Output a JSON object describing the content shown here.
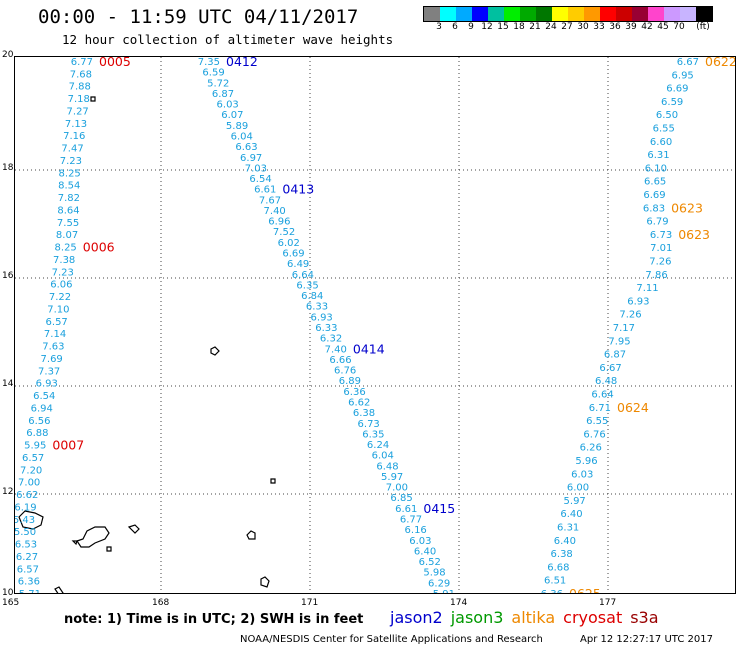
{
  "header": {
    "title": "00:00 - 11:59 UTC 04/11/2017",
    "subtitle": "12 hour collection of altimeter wave heights"
  },
  "colorbar": {
    "colors": [
      "#808080",
      "#00ffff",
      "#00aaff",
      "#0000ff",
      "#00c0a0",
      "#00ee00",
      "#00aa00",
      "#007700",
      "#ffff00",
      "#ffcc00",
      "#ff9900",
      "#ff0000",
      "#cc0000",
      "#990033",
      "#ff44cc",
      "#cc99ff",
      "#c8b4ff",
      "#000000"
    ],
    "labels": [
      "3",
      "6",
      "9",
      "12",
      "15",
      "18",
      "21",
      "24",
      "27",
      "30",
      "33",
      "36",
      "39",
      "42",
      "45",
      "70",
      "(ft)"
    ]
  },
  "axes": {
    "lat_labels": [
      "20",
      "18",
      "16",
      "14",
      "12",
      "10"
    ],
    "lon_labels": [
      "165",
      "168",
      "171",
      "174",
      "177"
    ]
  },
  "tracks": [
    {
      "id": "track-1",
      "values": [
        "6.77",
        "7.68",
        "7.88",
        "7.18",
        "7.27",
        "7.13",
        "7.16",
        "7.47",
        "7.23",
        "8.25",
        "8.54",
        "7.82",
        "8.64",
        "7.55",
        "8.07",
        "8.25",
        "7.38",
        "7.23",
        "6.06",
        "7.22",
        "7.10",
        "6.57",
        "7.14",
        "7.63",
        "7.69",
        "7.37",
        "6.93",
        "6.54",
        "6.94",
        "6.56",
        "6.88",
        "5.95",
        "6.57",
        "7.20",
        "7.00",
        "6.62",
        "6.19",
        "5.43",
        "5.50",
        "6.53",
        "6.27",
        "6.57",
        "6.36",
        "5.71"
      ],
      "tags": [
        {
          "text": "0005",
          "color": "#dd0000",
          "index": 0
        },
        {
          "text": "0006",
          "color": "#dd0000",
          "index": 15
        },
        {
          "text": "0007",
          "color": "#dd0000",
          "index": 31
        }
      ]
    },
    {
      "id": "track-2",
      "values": [
        "7.35",
        "6.59",
        "5.72",
        "6.87",
        "6.03",
        "6.07",
        "5.89",
        "6.04",
        "6.63",
        "6.97",
        "7.03",
        "6.54",
        "6.61",
        "7.67",
        "7.40",
        "6.96",
        "7.52",
        "6.02",
        "6.69",
        "6.49",
        "6.64",
        "6.35",
        "6.84",
        "6.33",
        "6.93",
        "6.33",
        "6.32",
        "7.40",
        "6.66",
        "6.76",
        "6.89",
        "6.36",
        "6.62",
        "6.38",
        "6.73",
        "6.35",
        "6.24",
        "6.04",
        "6.48",
        "5.97",
        "7.00",
        "6.85",
        "6.61",
        "6.77",
        "6.16",
        "6.03",
        "6.40",
        "6.52",
        "5.98",
        "6.29",
        "5.91"
      ],
      "tags": [
        {
          "text": "0412",
          "color": "#0000cc",
          "index": 0
        },
        {
          "text": "0413",
          "color": "#0000cc",
          "index": 12
        },
        {
          "text": "0414",
          "color": "#0000cc",
          "index": 27
        },
        {
          "text": "0415",
          "color": "#0000cc",
          "index": 42
        }
      ]
    },
    {
      "id": "track-3",
      "values": [
        "6.67",
        "6.95",
        "6.69",
        "6.59",
        "6.50",
        "6.55",
        "6.60",
        "6.31",
        "6.10",
        "6.65",
        "6.69",
        "6.83",
        "6.79",
        "6.73",
        "7.01",
        "7.26",
        "7.86",
        "7.11",
        "6.93",
        "7.26",
        "7.17",
        "7.95",
        "6.87",
        "6.67",
        "6.48",
        "6.64",
        "6.71",
        "6.55",
        "6.76",
        "6.26",
        "5.96",
        "6.03",
        "6.00",
        "5.97",
        "6.40",
        "6.31",
        "6.40",
        "6.38",
        "6.68",
        "6.51",
        "6.36"
      ],
      "tags": [
        {
          "text": "0622",
          "color": "#ee8800",
          "index": 0
        },
        {
          "text": "0623",
          "color": "#ee8800",
          "index": 11
        },
        {
          "text": "0623",
          "color": "#ee8800",
          "index": 13
        },
        {
          "text": "0624",
          "color": "#ee8800",
          "index": 26
        },
        {
          "text": "0625",
          "color": "#ee8800",
          "index": 40
        }
      ]
    }
  ],
  "footer": {
    "note": "note: 1) Time is in UTC; 2) SWH is in feet",
    "legend": [
      {
        "name": "jason2",
        "color": "#0000cc"
      },
      {
        "name": "jason3",
        "color": "#009900"
      },
      {
        "name": "altika",
        "color": "#ee8800"
      },
      {
        "name": "cryosat",
        "color": "#dd0000"
      },
      {
        "name": "s3a",
        "color": "#990000"
      }
    ],
    "credit": "NOAA/NESDIS Center for Satellite Applications and Research",
    "generated": "Apr 12 12:27:17 UTC 2017"
  }
}
